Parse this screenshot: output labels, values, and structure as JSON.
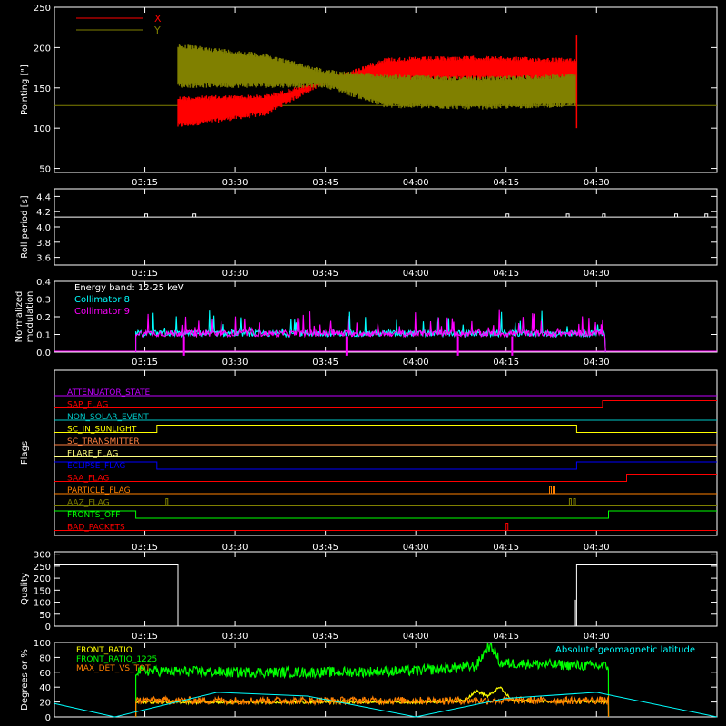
{
  "time_axis": {
    "start_min": 180,
    "end_min": 290,
    "tick_labels": [
      "03:15",
      "03:30",
      "03:45",
      "04:00",
      "04:15",
      "04:30"
    ],
    "tick_values_min": [
      195,
      210,
      225,
      240,
      255,
      270
    ]
  },
  "chart_data": [
    {
      "type": "line",
      "panel": "pointing",
      "ylabel": "Pointing [\"]",
      "ylim": [
        45,
        250
      ],
      "yticks": [
        "50",
        "100",
        "150",
        "200",
        "250"
      ],
      "ytick_values": [
        50,
        100,
        150,
        200,
        250
      ],
      "baseline_value": 128,
      "data_window_min": [
        200.5,
        266.7
      ],
      "series": [
        {
          "name": "X",
          "color": "#ff0000",
          "envelope_min": [
            200.5,
            215,
            225,
            235,
            250,
            266.7
          ],
          "upper": [
            140,
            142,
            160,
            188,
            190,
            187
          ],
          "lower": [
            100,
            115,
            155,
            160,
            160,
            160
          ]
        },
        {
          "name": "Y",
          "color": "#808000",
          "envelope_min": [
            200.5,
            215,
            225,
            235,
            250,
            266.7
          ],
          "upper": [
            205,
            193,
            173,
            167,
            164,
            168
          ],
          "lower": [
            150,
            150,
            150,
            125,
            123,
            126
          ]
        }
      ],
      "legend_placement": "top-left"
    },
    {
      "type": "line",
      "panel": "roll",
      "ylabel": "Roll period [s]",
      "ylim": [
        3.5,
        4.5
      ],
      "yticks": [
        "3.6",
        "3.8",
        "4.0",
        "4.2",
        "4.4"
      ],
      "ytick_values": [
        3.6,
        3.8,
        4.0,
        4.2,
        4.4
      ],
      "series": [
        {
          "name": "",
          "color": "#ffffff",
          "x_min": [
            180,
            290
          ],
          "y": [
            4.13,
            4.13
          ]
        }
      ]
    },
    {
      "type": "line",
      "panel": "modulation",
      "ylabel": "Normalized modulation",
      "ylabel_lines": [
        "Normalized",
        "modulation"
      ],
      "ylim": [
        0.0,
        0.4
      ],
      "yticks": [
        "0.0",
        "0.1",
        "0.2",
        "0.3",
        "0.4"
      ],
      "ytick_values": [
        0.0,
        0.1,
        0.2,
        0.3,
        0.4
      ],
      "annotation": "Energy band: 12-25 keV",
      "data_window_min": [
        193.5,
        271.5
      ],
      "series": [
        {
          "name": "Collimator 8",
          "color": "#00ffff",
          "level": 0.1
        },
        {
          "name": "Collimator 9",
          "color": "#ff00ff",
          "level": 0.1
        }
      ],
      "dips_min": [
        201.5,
        228.5,
        247,
        256
      ]
    },
    {
      "type": "line",
      "panel": "flags",
      "ylabel": "Flags",
      "series": [
        {
          "name": "ATTENUATOR_STATE",
          "color": "#c000ff",
          "segments": [
            [
              180,
              290,
              0
            ]
          ]
        },
        {
          "name": "SAP_FLAG",
          "color": "#ff0000",
          "segments": [
            [
              180,
              271,
              0
            ],
            [
              271,
              290,
              1
            ]
          ]
        },
        {
          "name": "NON_SOLAR_EVENT",
          "color": "#00c8c8",
          "segments": [
            [
              180,
              290,
              0
            ]
          ]
        },
        {
          "name": "SC_IN_SUNLIGHT",
          "color": "#ffff00",
          "segments": [
            [
              180,
              197,
              0
            ],
            [
              197,
              266.7,
              1
            ],
            [
              266.7,
              290,
              0
            ]
          ]
        },
        {
          "name": "SC_TRANSMITTER",
          "color": "#ff8040",
          "segments": [
            [
              180,
              290,
              0
            ]
          ]
        },
        {
          "name": "FLARE_FLAG",
          "color": "#ffff80",
          "segments": [
            [
              180,
              290,
              0
            ]
          ]
        },
        {
          "name": "ECLIPSE_FLAG",
          "color": "#0000ff",
          "segments": [
            [
              180,
              197,
              1
            ],
            [
              197,
              266.7,
              0
            ],
            [
              266.7,
              290,
              1
            ]
          ]
        },
        {
          "name": "SAA_FLAG",
          "color": "#ff0000",
          "segments": [
            [
              180,
              275,
              0
            ],
            [
              275,
              290,
              1
            ]
          ]
        },
        {
          "name": "PARTICLE_FLAG",
          "color": "#ff8000",
          "segments": [
            [
              180,
              290,
              0
            ]
          ]
        },
        {
          "name": "AAZ_FLAG",
          "color": "#808000",
          "segments": [
            [
              180,
              290,
              0
            ]
          ]
        },
        {
          "name": "FRONTS_OFF",
          "color": "#00ff00",
          "segments": [
            [
              180,
              193.5,
              1
            ],
            [
              193.5,
              272,
              0
            ],
            [
              272,
              290,
              1
            ]
          ]
        },
        {
          "name": "BAD_PACKETS",
          "color": "#ff0000",
          "segments": [
            [
              180,
              290,
              0
            ]
          ]
        }
      ],
      "spikes": [
        {
          "flag": "PARTICLE_FLAG",
          "min": [
            262.2,
            262.8
          ]
        },
        {
          "flag": "AAZ_FLAG",
          "min": [
            198.5,
            265.5,
            266.2
          ]
        },
        {
          "flag": "BAD_PACKETS",
          "min": [
            255
          ]
        }
      ]
    },
    {
      "type": "line",
      "panel": "quality",
      "ylabel": "Quality",
      "ylim": [
        0,
        310
      ],
      "yticks": [
        "0",
        "50",
        "100",
        "150",
        "200",
        "250",
        "300"
      ],
      "ytick_values": [
        0,
        50,
        100,
        150,
        200,
        250,
        300
      ],
      "series": [
        {
          "name": "",
          "color": "#ffffff",
          "x_min": [
            180,
            200.5,
            200.5,
            266.7,
            266.7,
            290
          ],
          "y": [
            255,
            255,
            0,
            0,
            255,
            255
          ]
        }
      ]
    },
    {
      "type": "line",
      "panel": "ratios",
      "ylabel": "Degrees or %",
      "ylim": [
        0,
        100
      ],
      "yticks": [
        "0",
        "20",
        "40",
        "60",
        "80",
        "100"
      ],
      "ytick_values": [
        0,
        20,
        40,
        60,
        80,
        100
      ],
      "series": [
        {
          "name": "FRONT_RATIO",
          "color": "#ffff00",
          "x_min": [
            193.5,
            240,
            248,
            250,
            252,
            254,
            256,
            272
          ],
          "y": [
            20,
            20,
            22,
            35,
            28,
            40,
            22,
            20
          ]
        },
        {
          "name": "FRONT_RATIO_1225",
          "color": "#00ff00",
          "x_min": [
            193.5,
            210,
            225,
            240,
            250,
            252,
            253,
            254,
            256,
            272
          ],
          "y": [
            62,
            60,
            60,
            62,
            68,
            95,
            90,
            72,
            72,
            68
          ]
        },
        {
          "name": "MAX_DET_VS_TOT",
          "color": "#ff8000",
          "x_min": [
            193.5,
            272
          ],
          "y": [
            22,
            22
          ]
        },
        {
          "name": "Absolute geomagnetic latitude",
          "color": "#00ffff",
          "x_min": [
            180,
            190,
            207,
            222,
            240,
            255,
            270,
            290
          ],
          "y": [
            18,
            0,
            33,
            28,
            0,
            25,
            33,
            0
          ]
        }
      ]
    }
  ]
}
